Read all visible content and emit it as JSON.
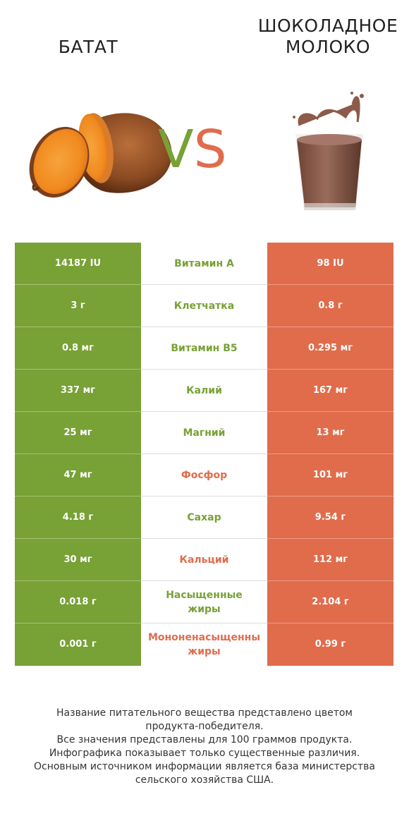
{
  "products": {
    "left": {
      "name": "БАТАТ",
      "color": "#78a136"
    },
    "right": {
      "name_line1": "ШОКОЛАДНОЕ",
      "name_line2": "МОЛОКО",
      "color": "#e06c4c"
    }
  },
  "vs": {
    "v": "V",
    "s": "S"
  },
  "rows": [
    {
      "left": "14187 IU",
      "nutrient": "Витамин А",
      "right": "98 IU",
      "winner": "left"
    },
    {
      "left": "3 г",
      "nutrient": "Клетчатка",
      "right": "0.8 г",
      "winner": "left"
    },
    {
      "left": "0.8 мг",
      "nutrient": "Витамин B5",
      "right": "0.295 мг",
      "winner": "left"
    },
    {
      "left": "337 мг",
      "nutrient": "Калий",
      "right": "167 мг",
      "winner": "left"
    },
    {
      "left": "25 мг",
      "nutrient": "Магний",
      "right": "13 мг",
      "winner": "left"
    },
    {
      "left": "47 мг",
      "nutrient": "Фосфор",
      "right": "101 мг",
      "winner": "right"
    },
    {
      "left": "4.18 г",
      "nutrient": "Сахар",
      "right": "9.54 г",
      "winner": "left"
    },
    {
      "left": "30 мг",
      "nutrient": "Кальций",
      "right": "112 мг",
      "winner": "right"
    },
    {
      "left": "0.018 г",
      "nutrient_line1": "Насыщенные",
      "nutrient_line2": "жиры",
      "right": "2.104 г",
      "winner": "left"
    },
    {
      "left": "0.001 г",
      "nutrient_line1": "Мононенасыщенны",
      "nutrient_line2": "жиры",
      "right": "0.99 г",
      "winner": "right"
    }
  ],
  "footer": {
    "line1": "Название питательного вещества представлено цветом",
    "line2": "продукта-победителя.",
    "line3": "Все значения представлены для 100 граммов продукта.",
    "line4": "Инфографика показывает только существенные различия.",
    "line5": "Основным источником информации является база министерства",
    "line6": "сельского хозяйства США."
  }
}
